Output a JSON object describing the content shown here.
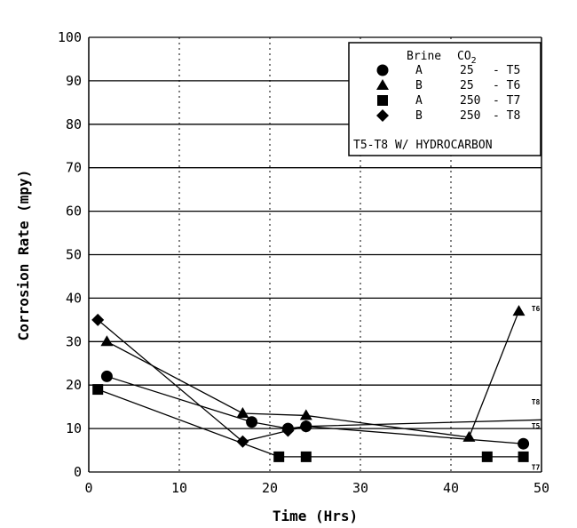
{
  "chart_data": {
    "type": "line",
    "xlabel": "Time (Hrs)",
    "ylabel": "Corrosion Rate (mpy)",
    "xlim": [
      0,
      50
    ],
    "ylim": [
      0,
      100
    ],
    "xticks": [
      0,
      10,
      20,
      30,
      40,
      50
    ],
    "yticks": [
      0,
      10,
      20,
      30,
      40,
      50,
      60,
      70,
      80,
      90,
      100
    ],
    "grid": "horizontal solid, vertical dotted",
    "legend": {
      "placement": "top-right",
      "header_brine": "Brine",
      "header_co2": "CO",
      "header_co2_sub": "2",
      "note": "T5-T8 W/ HYDROCARBON"
    },
    "series": [
      {
        "name": "T5",
        "brine": "A",
        "co2": "25",
        "marker": "circle",
        "x": [
          2,
          18,
          22,
          24,
          48
        ],
        "y": [
          22,
          11.5,
          10,
          10.5,
          6.5
        ]
      },
      {
        "name": "T6",
        "brine": "B",
        "co2": "25",
        "marker": "triangle",
        "x": [
          2,
          17,
          24,
          42,
          47.5
        ],
        "y": [
          30,
          13.5,
          13,
          8,
          37
        ]
      },
      {
        "name": "T7",
        "brine": "A",
        "co2": "250",
        "marker": "square",
        "x": [
          1,
          21,
          24,
          44,
          48
        ],
        "y": [
          19,
          3.5,
          3.5,
          3.5,
          3.5
        ]
      },
      {
        "name": "T8",
        "brine": "B",
        "co2": "250",
        "marker": "diamond",
        "x": [
          1,
          17,
          22,
          24,
          50
        ],
        "y": [
          35,
          7,
          9.5,
          10.5,
          12
        ]
      }
    ],
    "end_labels": [
      {
        "text": "T6",
        "x": 48.5,
        "y": 37
      },
      {
        "text": "T8",
        "x": 48.5,
        "y": 15.5
      },
      {
        "text": "T5",
        "x": 48.5,
        "y": 10
      },
      {
        "text": "T7",
        "x": 48.5,
        "y": 0.5
      }
    ]
  }
}
